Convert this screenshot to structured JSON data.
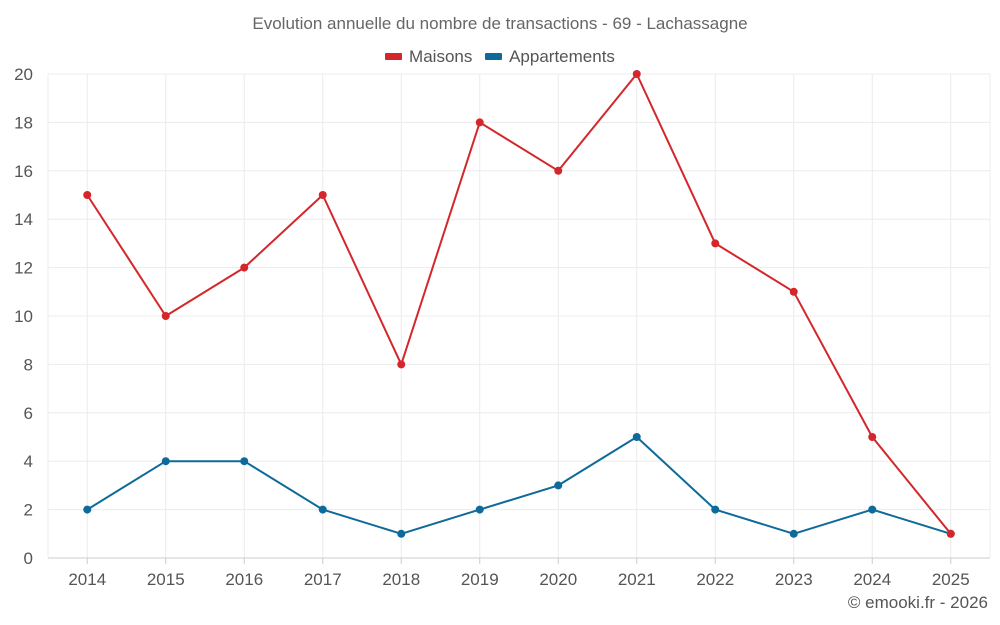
{
  "chart_data": {
    "type": "line",
    "title": "Evolution annuelle du nombre de transactions - 69 - Lachassagne",
    "categories": [
      "2014",
      "2015",
      "2016",
      "2017",
      "2018",
      "2019",
      "2020",
      "2021",
      "2022",
      "2023",
      "2024",
      "2025"
    ],
    "series": [
      {
        "name": "Maisons",
        "color": "#d3272c",
        "values": [
          15,
          10,
          12,
          15,
          8,
          18,
          16,
          20,
          13,
          11,
          5,
          1
        ]
      },
      {
        "name": "Appartements",
        "color": "#0d6a9a",
        "values": [
          2,
          4,
          4,
          2,
          1,
          2,
          3,
          5,
          2,
          1,
          2,
          1
        ]
      }
    ],
    "xlabel": "",
    "ylabel": "",
    "ylim": [
      0,
      20
    ],
    "yticks": [
      0,
      2,
      4,
      6,
      8,
      10,
      12,
      14,
      16,
      18,
      20
    ],
    "grid": true,
    "legend": "top-center"
  },
  "credit": "© emooki.fr - 2026"
}
